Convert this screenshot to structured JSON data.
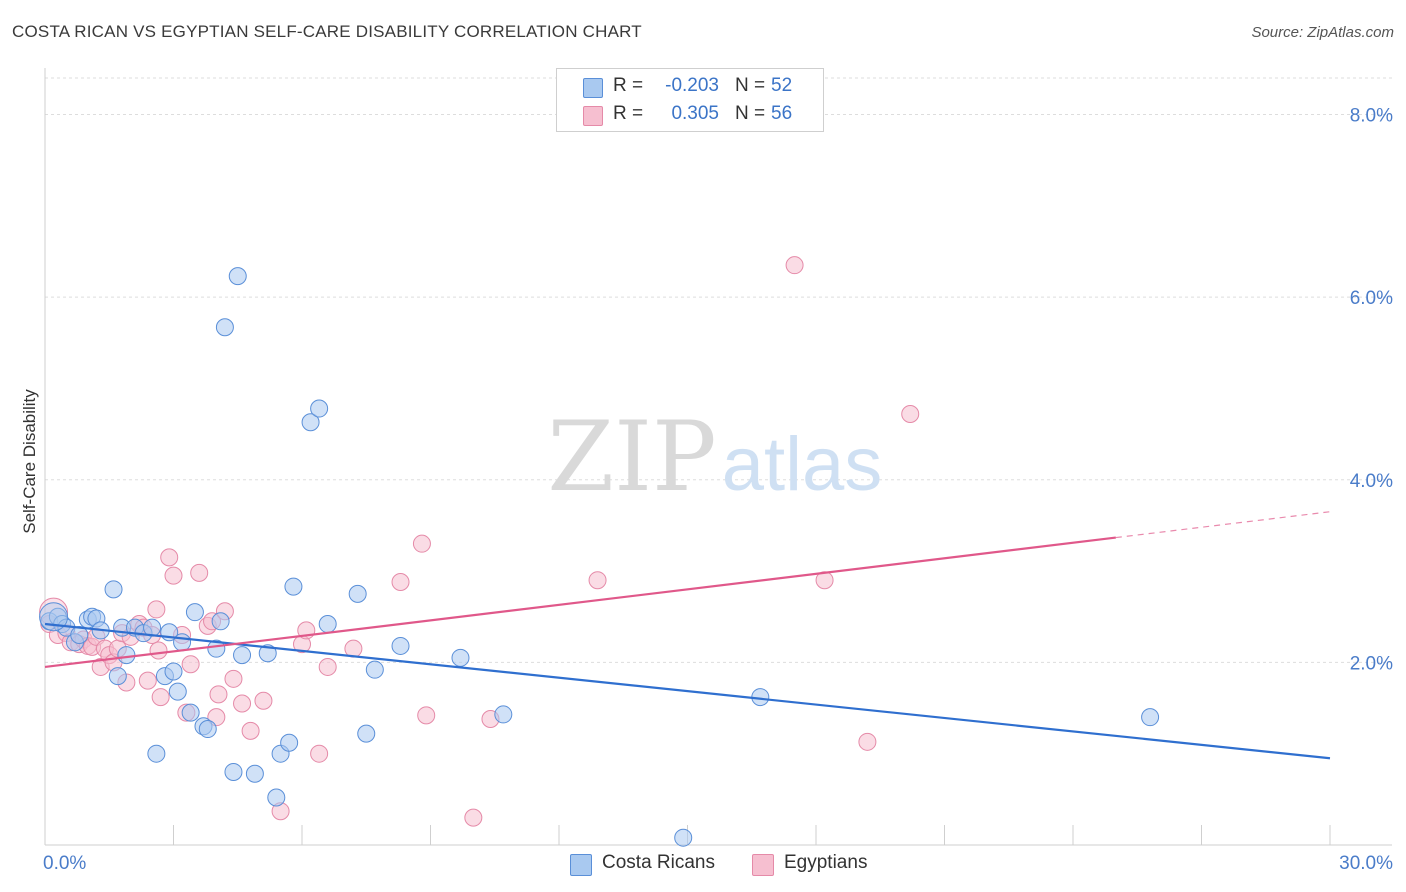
{
  "title": "COSTA RICAN VS EGYPTIAN SELF-CARE DISABILITY CORRELATION CHART",
  "source": "Source: ZipAtlas.com",
  "watermark": {
    "zip": "ZIP",
    "atlas": "atlas"
  },
  "colors": {
    "blue_fill": "#a9c9f0",
    "blue_stroke": "#5a8fd8",
    "blue_line": "#2f6fcf",
    "pink_fill": "#f6bfd0",
    "pink_stroke": "#e58aa8",
    "pink_line": "#e0588a",
    "axis_label": "#4a7cc9",
    "grid": "#dddddd"
  },
  "legend_top": {
    "rows": [
      {
        "r_label": "R =",
        "r_value": "-0.203",
        "n_label": "N =",
        "n_value": "52",
        "swatch": "blue"
      },
      {
        "r_label": "R =",
        "r_value": "0.305",
        "n_label": "N =",
        "n_value": "56",
        "swatch": "pink"
      }
    ]
  },
  "legend_bottom": {
    "items": [
      {
        "label": "Costa Ricans",
        "swatch": "blue"
      },
      {
        "label": "Egyptians",
        "swatch": "pink"
      }
    ]
  },
  "chart_data": {
    "type": "scatter",
    "title": "COSTA RICAN VS EGYPTIAN SELF-CARE DISABILITY CORRELATION CHART",
    "xlabel": "",
    "ylabel": "Self-Care Disability",
    "xlim": [
      0,
      30
    ],
    "ylim": [
      0,
      8.4
    ],
    "x_tick_labels": [
      "0.0%",
      "30.0%"
    ],
    "y_ticks": [
      2,
      4,
      6,
      8
    ],
    "y_tick_labels": [
      "2.0%",
      "4.0%",
      "6.0%",
      "8.0%"
    ],
    "series": [
      {
        "name": "Costa Ricans",
        "color": "blue",
        "r": -0.203,
        "n": 52,
        "trend": {
          "x0": 0,
          "y0": 2.42,
          "x1": 30,
          "y1": 0.95,
          "dash_from": null
        },
        "points": [
          [
            0.1,
            2.45
          ],
          [
            0.3,
            2.5
          ],
          [
            0.4,
            2.42
          ],
          [
            0.5,
            2.38
          ],
          [
            0.7,
            2.22
          ],
          [
            0.8,
            2.3
          ],
          [
            1.0,
            2.47
          ],
          [
            1.1,
            2.5
          ],
          [
            1.2,
            2.48
          ],
          [
            1.3,
            2.35
          ],
          [
            1.6,
            2.8
          ],
          [
            1.7,
            1.85
          ],
          [
            1.8,
            2.38
          ],
          [
            1.9,
            2.08
          ],
          [
            2.1,
            2.38
          ],
          [
            2.3,
            2.32
          ],
          [
            2.5,
            2.38
          ],
          [
            2.6,
            1.0
          ],
          [
            2.8,
            1.85
          ],
          [
            2.9,
            2.33
          ],
          [
            3.0,
            1.9
          ],
          [
            3.1,
            1.68
          ],
          [
            3.2,
            2.22
          ],
          [
            3.4,
            1.45
          ],
          [
            3.5,
            2.55
          ],
          [
            3.7,
            1.3
          ],
          [
            3.8,
            1.27
          ],
          [
            4.0,
            2.15
          ],
          [
            4.1,
            2.45
          ],
          [
            4.2,
            5.67
          ],
          [
            4.5,
            6.23
          ],
          [
            4.4,
            0.8
          ],
          [
            4.6,
            2.08
          ],
          [
            4.9,
            0.78
          ],
          [
            5.2,
            2.1
          ],
          [
            5.4,
            0.52
          ],
          [
            5.5,
            1.0
          ],
          [
            5.7,
            1.12
          ],
          [
            5.8,
            2.83
          ],
          [
            6.2,
            4.63
          ],
          [
            6.4,
            4.78
          ],
          [
            6.6,
            2.42
          ],
          [
            7.3,
            2.75
          ],
          [
            7.5,
            1.22
          ],
          [
            7.7,
            1.92
          ],
          [
            8.3,
            2.18
          ],
          [
            9.7,
            2.05
          ],
          [
            10.7,
            1.43
          ],
          [
            14.9,
            0.08
          ],
          [
            16.7,
            1.62
          ],
          [
            25.8,
            1.4
          ],
          [
            0.2,
            2.5
          ]
        ]
      },
      {
        "name": "Egyptians",
        "color": "pink",
        "r": 0.305,
        "n": 56,
        "trend": {
          "x0": 0,
          "y0": 1.95,
          "x1": 30,
          "y1": 3.65,
          "dash_from": 25.0
        },
        "points": [
          [
            0.1,
            2.42
          ],
          [
            0.3,
            2.3
          ],
          [
            0.5,
            2.32
          ],
          [
            0.6,
            2.22
          ],
          [
            0.8,
            2.2
          ],
          [
            0.9,
            2.25
          ],
          [
            1.0,
            2.18
          ],
          [
            1.1,
            2.17
          ],
          [
            1.2,
            2.28
          ],
          [
            1.3,
            1.95
          ],
          [
            1.4,
            2.15
          ],
          [
            1.5,
            2.08
          ],
          [
            1.6,
            2.0
          ],
          [
            1.7,
            2.15
          ],
          [
            1.8,
            2.32
          ],
          [
            1.9,
            1.78
          ],
          [
            2.0,
            2.28
          ],
          [
            2.2,
            2.42
          ],
          [
            2.3,
            2.38
          ],
          [
            2.4,
            1.8
          ],
          [
            2.5,
            2.3
          ],
          [
            2.6,
            2.58
          ],
          [
            2.65,
            2.13
          ],
          [
            2.7,
            1.62
          ],
          [
            2.9,
            3.15
          ],
          [
            3.0,
            2.95
          ],
          [
            3.2,
            2.3
          ],
          [
            3.3,
            1.45
          ],
          [
            3.4,
            1.98
          ],
          [
            3.6,
            2.98
          ],
          [
            3.8,
            2.4
          ],
          [
            3.9,
            2.45
          ],
          [
            4.0,
            1.4
          ],
          [
            4.05,
            1.65
          ],
          [
            4.2,
            2.56
          ],
          [
            4.4,
            1.82
          ],
          [
            4.6,
            1.55
          ],
          [
            4.8,
            1.25
          ],
          [
            5.1,
            1.58
          ],
          [
            5.5,
            0.37
          ],
          [
            6.0,
            2.2
          ],
          [
            6.1,
            2.35
          ],
          [
            6.4,
            1.0
          ],
          [
            6.6,
            1.95
          ],
          [
            7.2,
            2.15
          ],
          [
            8.3,
            2.88
          ],
          [
            8.8,
            3.3
          ],
          [
            8.9,
            1.42
          ],
          [
            10.0,
            0.3
          ],
          [
            10.4,
            1.38
          ],
          [
            12.9,
            2.9
          ],
          [
            17.5,
            6.35
          ],
          [
            18.2,
            2.9
          ],
          [
            19.2,
            1.13
          ],
          [
            20.2,
            4.72
          ],
          [
            0.2,
            2.55
          ]
        ]
      }
    ]
  }
}
